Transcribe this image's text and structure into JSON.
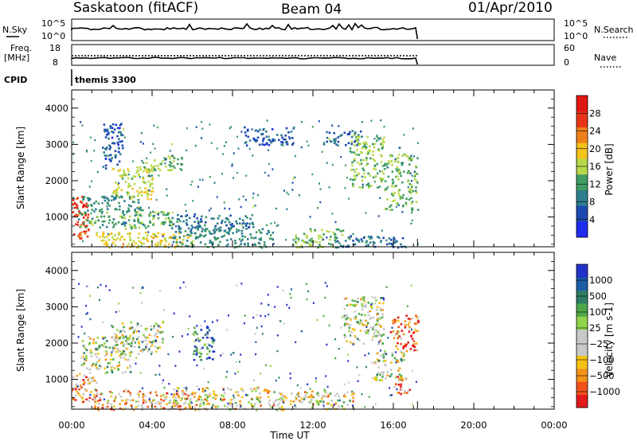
{
  "header": {
    "station": "Saskatoon (fitACF)",
    "beam": "Beam 04",
    "date": "01/Apr/2010"
  },
  "params": {
    "nsky_label": "N.Sky",
    "nsky_ticks": [
      "10^5",
      "10^0"
    ],
    "nsearch_label": "N.Search",
    "freq_label": "Freq.",
    "freq_unit": "[MHz]",
    "freq_ticks": [
      "18",
      "8"
    ],
    "nave_ticks": [
      "60",
      "0"
    ],
    "nave_label": "Nave",
    "cpid_label": "CPID",
    "cpid_value": "themis 3300"
  },
  "colors": {
    "power": [
      "#1e2bf0",
      "#1c49b0",
      "#2d7d8f",
      "#3f9c63",
      "#b7d84a",
      "#f3c21b",
      "#ef8019",
      "#e8351a",
      "#e11712"
    ],
    "velocity": [
      "#e31a1c",
      "#f2521c",
      "#f49418",
      "#f4c215",
      "#c8c8c8",
      "#c8c8c8",
      "#8fd44a",
      "#4fa84a",
      "#2f7d64",
      "#1d5da6",
      "#2233c9"
    ]
  },
  "chart_data": [
    {
      "type": "heatmap",
      "name": "power",
      "ylabel": "Slant Range [km]",
      "xlabel": "",
      "xlim": [
        0,
        24
      ],
      "ylim": [
        180,
        4500
      ],
      "x_ticks": [
        "00:00",
        "04:00",
        "08:00",
        "12:00",
        "16:00",
        "20:00",
        "00:00"
      ],
      "y_ticks": [
        "1000",
        "2000",
        "3000",
        "4000"
      ],
      "y_tick_values": [
        1000,
        2000,
        3000,
        4000
      ],
      "colorbar": {
        "label": "Power [dB]",
        "ticks": [
          "4",
          "8",
          "12",
          "16",
          "20",
          "24",
          "28"
        ],
        "range": [
          0,
          30
        ]
      },
      "data_end_hour": 17.2,
      "regions": [
        {
          "t0": 0.0,
          "t1": 0.8,
          "r0": 400,
          "r1": 1700,
          "level": 26
        },
        {
          "t0": 0.3,
          "t1": 5.0,
          "r0": 700,
          "r1": 1200,
          "level": 12
        },
        {
          "t0": 0.5,
          "t1": 3.5,
          "r0": 1200,
          "r1": 1600,
          "level": 10
        },
        {
          "t0": 1.0,
          "t1": 6.0,
          "r0": 180,
          "r1": 600,
          "level": 18
        },
        {
          "t0": 2.0,
          "t1": 4.0,
          "r0": 1500,
          "r1": 2400,
          "level": 16
        },
        {
          "t0": 3.5,
          "t1": 5.5,
          "r0": 2300,
          "r1": 2700,
          "level": 14
        },
        {
          "t0": 1.5,
          "t1": 2.5,
          "r0": 2300,
          "r1": 3600,
          "level": 6
        },
        {
          "t0": 5.0,
          "t1": 9.0,
          "r0": 700,
          "r1": 1100,
          "level": 8
        },
        {
          "t0": 5.0,
          "t1": 10.0,
          "r0": 180,
          "r1": 700,
          "level": 10
        },
        {
          "t0": 8.5,
          "t1": 11.0,
          "r0": 3000,
          "r1": 3500,
          "level": 6
        },
        {
          "t0": 11.0,
          "t1": 13.5,
          "r0": 180,
          "r1": 700,
          "level": 14
        },
        {
          "t0": 12.5,
          "t1": 14.5,
          "r0": 3000,
          "r1": 3400,
          "level": 7
        },
        {
          "t0": 13.8,
          "t1": 15.5,
          "r0": 1800,
          "r1": 3300,
          "level": 14
        },
        {
          "t0": 15.5,
          "t1": 17.2,
          "r0": 1200,
          "r1": 2800,
          "level": 13
        },
        {
          "t0": 13.0,
          "t1": 16.5,
          "r0": 180,
          "r1": 500,
          "level": 8
        }
      ]
    },
    {
      "type": "heatmap",
      "name": "velocity",
      "ylabel": "Slant Range [km]",
      "xlabel": "Time UT",
      "xlim": [
        0,
        24
      ],
      "ylim": [
        180,
        4500
      ],
      "x_ticks": [
        "00:00",
        "04:00",
        "08:00",
        "12:00",
        "16:00",
        "20:00",
        "00:00"
      ],
      "y_ticks": [
        "1000",
        "2000",
        "3000",
        "4000"
      ],
      "y_tick_values": [
        1000,
        2000,
        3000,
        4000
      ],
      "colorbar": {
        "label": "Velocity [m s-1]",
        "ticks": [
          "1000",
          "500",
          "100",
          "25",
          "-25",
          "-100",
          "-500",
          "-1000"
        ]
      },
      "data_end_hour": 17.2,
      "regions": [
        {
          "t0": 0.0,
          "t1": 1.2,
          "r0": 400,
          "r1": 1200,
          "level": 2
        },
        {
          "t0": 0.5,
          "t1": 3.0,
          "r0": 1200,
          "r1": 2200,
          "level": 5
        },
        {
          "t0": 1.0,
          "t1": 6.0,
          "r0": 180,
          "r1": 700,
          "level": 3
        },
        {
          "t0": 2.0,
          "t1": 4.5,
          "r0": 1700,
          "r1": 2600,
          "level": 5
        },
        {
          "t0": 5.0,
          "t1": 10.0,
          "r0": 180,
          "r1": 800,
          "level": 4
        },
        {
          "t0": 6.0,
          "t1": 7.0,
          "r0": 1500,
          "r1": 2500,
          "level": 8
        },
        {
          "t0": 10.0,
          "t1": 14.0,
          "r0": 180,
          "r1": 700,
          "level": 4
        },
        {
          "t0": 13.5,
          "t1": 15.5,
          "r0": 2000,
          "r1": 3300,
          "level": 5
        },
        {
          "t0": 15.8,
          "t1": 17.2,
          "r0": 1800,
          "r1": 2800,
          "level": 1
        },
        {
          "t0": 15.0,
          "t1": 16.5,
          "r0": 1000,
          "r1": 1800,
          "level": 5
        },
        {
          "t0": 16.0,
          "t1": 16.8,
          "r0": 600,
          "r1": 1100,
          "level": 2
        }
      ]
    }
  ]
}
